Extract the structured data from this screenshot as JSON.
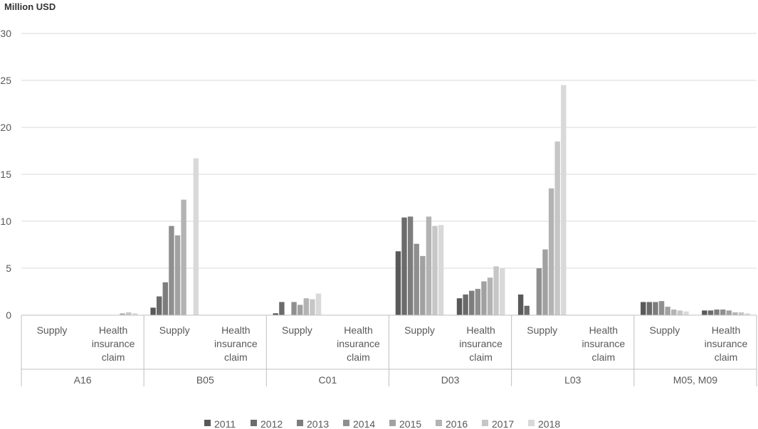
{
  "chart_data": {
    "type": "bar",
    "ylabel": "Million USD",
    "ylim": [
      0,
      30
    ],
    "yticks": [
      0,
      5,
      10,
      15,
      20,
      25,
      30
    ],
    "grid": "horizontal",
    "legend_position": "bottom",
    "groups": [
      "A16",
      "B05",
      "C01",
      "D03",
      "L03",
      "M05, M09"
    ],
    "subcategories": [
      "Supply",
      "Health insurance claim"
    ],
    "subcategory_lines": [
      [
        "Supply"
      ],
      [
        "Health",
        "insurance",
        "claim"
      ]
    ],
    "series": [
      {
        "name": "2011",
        "color": "#595959",
        "values": [
          [
            0,
            0
          ],
          [
            0.8,
            0
          ],
          [
            0.2,
            0
          ],
          [
            6.8,
            1.8
          ],
          [
            2.2,
            0
          ],
          [
            1.4,
            0.5
          ]
        ]
      },
      {
        "name": "2012",
        "color": "#6b6b6b",
        "values": [
          [
            0,
            0
          ],
          [
            2.0,
            0
          ],
          [
            1.4,
            0
          ],
          [
            10.4,
            2.2
          ],
          [
            1.0,
            0
          ],
          [
            1.4,
            0.5
          ]
        ]
      },
      {
        "name": "2013",
        "color": "#7d7d7d",
        "values": [
          [
            0,
            0
          ],
          [
            3.5,
            0
          ],
          [
            0,
            0
          ],
          [
            10.5,
            2.6
          ],
          [
            0,
            0
          ],
          [
            1.4,
            0.6
          ]
        ]
      },
      {
        "name": "2014",
        "color": "#8f8f8f",
        "values": [
          [
            0,
            0
          ],
          [
            9.5,
            0
          ],
          [
            1.4,
            0
          ],
          [
            7.6,
            2.8
          ],
          [
            5.0,
            0
          ],
          [
            1.5,
            0.6
          ]
        ]
      },
      {
        "name": "2015",
        "color": "#a1a1a1",
        "values": [
          [
            0,
            0
          ],
          [
            8.5,
            0
          ],
          [
            1.1,
            0
          ],
          [
            6.3,
            3.6
          ],
          [
            7.0,
            0
          ],
          [
            0.9,
            0.5
          ]
        ]
      },
      {
        "name": "2016",
        "color": "#b3b3b3",
        "values": [
          [
            0,
            0.2
          ],
          [
            12.3,
            0
          ],
          [
            1.8,
            0
          ],
          [
            10.5,
            4.0
          ],
          [
            13.5,
            0
          ],
          [
            0.6,
            0.3
          ]
        ]
      },
      {
        "name": "2017",
        "color": "#c6c6c6",
        "values": [
          [
            0,
            0.3
          ],
          [
            0,
            0
          ],
          [
            1.7,
            0
          ],
          [
            9.5,
            5.2
          ],
          [
            18.5,
            0
          ],
          [
            0.5,
            0.3
          ]
        ]
      },
      {
        "name": "2018",
        "color": "#d9d9d9",
        "values": [
          [
            0,
            0.2
          ],
          [
            16.7,
            0
          ],
          [
            2.3,
            0
          ],
          [
            9.6,
            5.0
          ],
          [
            24.5,
            0
          ],
          [
            0.4,
            0.2
          ]
        ]
      }
    ]
  }
}
